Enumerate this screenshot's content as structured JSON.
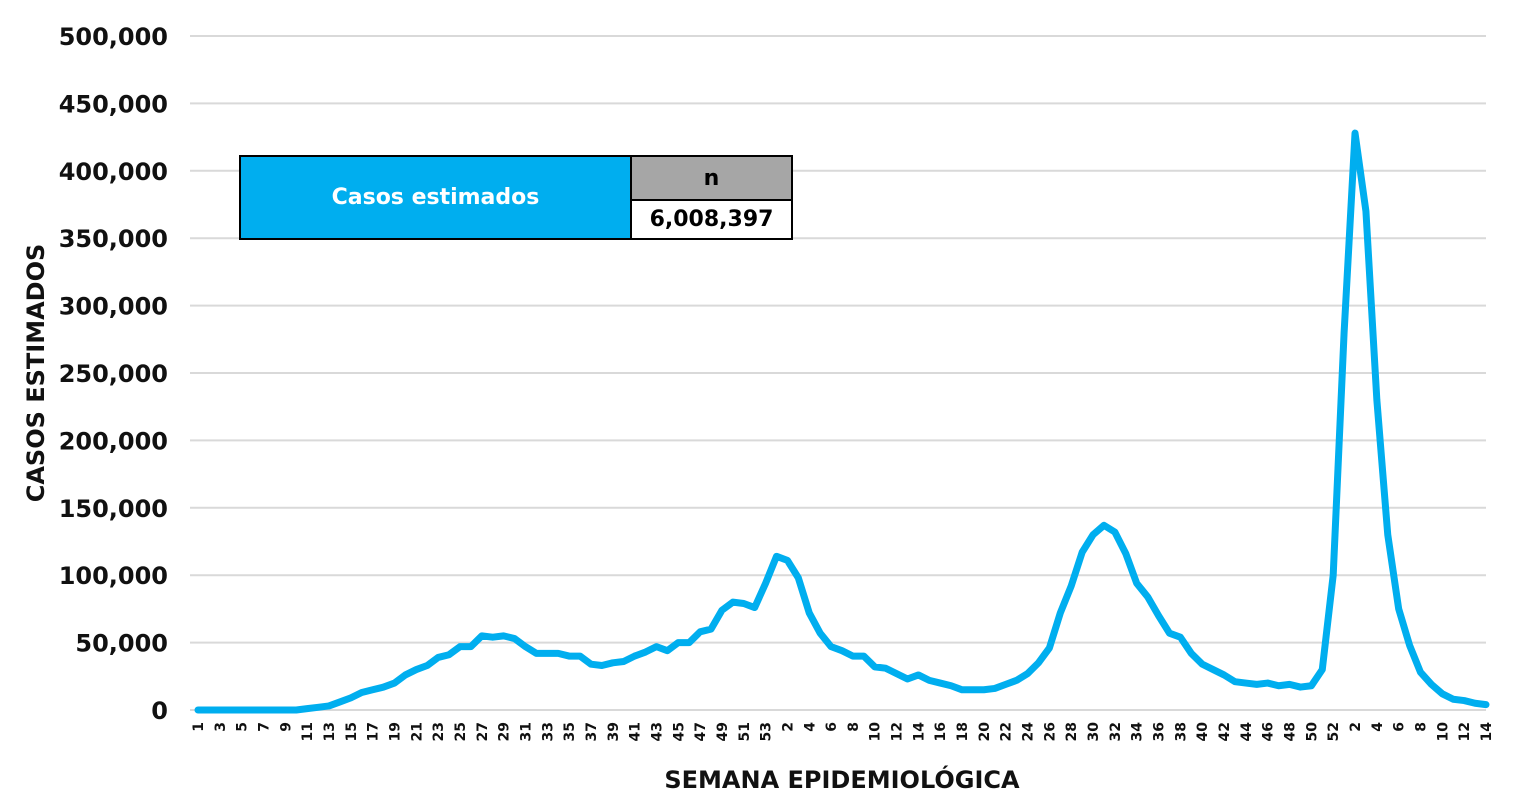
{
  "chart_data": {
    "type": "line",
    "title": "",
    "xlabel": "SEMANA EPIDEMIOLÓGICA",
    "ylabel": "CASOS ESTIMADOS",
    "ylim": [
      0,
      500000
    ],
    "yticks": [
      "0",
      "50,000",
      "100,000",
      "150,000",
      "200,000",
      "250,000",
      "300,000",
      "350,000",
      "400,000",
      "450,000",
      "500,000"
    ],
    "grid": true,
    "legend": "none",
    "colors": {
      "line": "#00aeef",
      "grid": "#d9d9d9",
      "table_label_bg": "#00aeef",
      "table_header_bg": "#a6a6a6"
    },
    "x_labels": [
      "1",
      "3",
      "5",
      "7",
      "9",
      "11",
      "13",
      "15",
      "17",
      "19",
      "21",
      "23",
      "25",
      "27",
      "29",
      "31",
      "33",
      "35",
      "37",
      "39",
      "41",
      "43",
      "45",
      "47",
      "49",
      "51",
      "53",
      "2",
      "4",
      "6",
      "8",
      "10",
      "12",
      "14",
      "16",
      "18",
      "20",
      "22",
      "24",
      "26",
      "28",
      "30",
      "32",
      "34",
      "36",
      "38",
      "40",
      "42",
      "44",
      "46",
      "48",
      "50",
      "52",
      "2",
      "4",
      "6",
      "8",
      "10",
      "12",
      "14"
    ],
    "x": [
      "1",
      "2",
      "3",
      "4",
      "5",
      "6",
      "7",
      "8",
      "9",
      "10",
      "11",
      "12",
      "13",
      "14",
      "15",
      "16",
      "17",
      "18",
      "19",
      "20",
      "21",
      "22",
      "23",
      "24",
      "25",
      "26",
      "27",
      "28",
      "29",
      "30",
      "31",
      "32",
      "33",
      "34",
      "35",
      "36",
      "37",
      "38",
      "39",
      "40",
      "41",
      "42",
      "43",
      "44",
      "45",
      "46",
      "47",
      "48",
      "49",
      "50",
      "51",
      "52",
      "53",
      "1",
      "2",
      "3",
      "4",
      "5",
      "6",
      "7",
      "8",
      "9",
      "10",
      "11",
      "12",
      "13",
      "14",
      "15",
      "16",
      "17",
      "18",
      "19",
      "20",
      "21",
      "22",
      "23",
      "24",
      "25",
      "26",
      "27",
      "28",
      "29",
      "30",
      "31",
      "32",
      "33",
      "34",
      "35",
      "36",
      "37",
      "38",
      "39",
      "40",
      "41",
      "42",
      "43",
      "44",
      "45",
      "46",
      "47",
      "48",
      "49",
      "50",
      "51",
      "52",
      "1",
      "2",
      "3",
      "4",
      "5",
      "6",
      "7",
      "8",
      "9",
      "10",
      "11",
      "12",
      "13",
      "14"
    ],
    "series": [
      {
        "values": [
          0,
          0,
          0,
          0,
          0,
          0,
          0,
          0,
          0,
          0,
          1000,
          2000,
          3000,
          6000,
          9000,
          13000,
          15000,
          17000,
          20000,
          26000,
          30000,
          33000,
          39000,
          41000,
          47000,
          47000,
          55000,
          54000,
          55000,
          53000,
          47000,
          42000,
          42000,
          42000,
          40000,
          40000,
          34000,
          33000,
          35000,
          36000,
          40000,
          43000,
          47000,
          44000,
          50000,
          50000,
          58000,
          60000,
          74000,
          80000,
          79000,
          76000,
          94000,
          114000,
          111000,
          98000,
          72000,
          57000,
          47000,
          44000,
          40000,
          40000,
          32000,
          31000,
          27000,
          23000,
          26000,
          22000,
          20000,
          18000,
          15000,
          15000,
          15000,
          16000,
          19000,
          22000,
          27000,
          35000,
          46000,
          72000,
          92000,
          117000,
          130000,
          137000,
          132000,
          116000,
          94000,
          84000,
          70000,
          57000,
          54000,
          42000,
          34000,
          30000,
          26000,
          21000,
          20000,
          19000,
          20000,
          18000,
          19000,
          17000,
          18000,
          30000,
          100000,
          280000,
          428000,
          370000,
          230000,
          130000,
          75000,
          48000,
          28000,
          19000,
          12000,
          8000,
          7000,
          5000,
          4000
        ]
      }
    ],
    "table": {
      "label": "Casos estimados",
      "header": "n",
      "value": "6,008,397"
    }
  }
}
